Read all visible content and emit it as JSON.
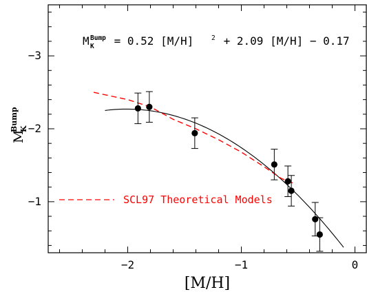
{
  "chart_data": {
    "type": "scatter",
    "xlabel": "[M/H]",
    "ylabel_main": "M",
    "ylabel_sub": "K",
    "ylabel_sup": "Bump",
    "xlim": [
      -2.7,
      0.1
    ],
    "ylim": [
      -0.3,
      -3.7
    ],
    "y_inverted": true,
    "x_ticks": [
      -2,
      -1,
      0
    ],
    "x_tick_labels": [
      "−2",
      "−1",
      "0"
    ],
    "y_ticks": [
      -3,
      -2,
      -1
    ],
    "y_tick_labels": [
      "−3",
      "−2",
      "−1"
    ],
    "equation": {
      "lhs_main": "M",
      "lhs_sub": "K",
      "lhs_sup": "Bump",
      "rhs_part1": " = 0.52 [M/H]",
      "rhs_sq": "2",
      "rhs_part2": " + 2.09 [M/H] − 0.17"
    },
    "series": [
      {
        "kind": "points_with_errorbars",
        "color": "#000000",
        "points": [
          {
            "x": -1.91,
            "y": -2.28,
            "err": 0.21
          },
          {
            "x": -1.81,
            "y": -2.3,
            "err": 0.21
          },
          {
            "x": -1.41,
            "y": -1.94,
            "err": 0.21
          },
          {
            "x": -0.71,
            "y": -1.51,
            "err": 0.21
          },
          {
            "x": -0.59,
            "y": -1.28,
            "err": 0.21
          },
          {
            "x": -0.56,
            "y": -1.15,
            "err": 0.21
          },
          {
            "x": -0.35,
            "y": -0.76,
            "err": 0.23
          },
          {
            "x": -0.31,
            "y": -0.55,
            "err": 0.23
          }
        ]
      },
      {
        "kind": "fit_curve",
        "color": "#000000",
        "coefficients": {
          "a": 0.52,
          "b": 2.09,
          "c": -0.17
        },
        "x_range": [
          -2.2,
          -0.1
        ]
      },
      {
        "kind": "dashed_line",
        "name": "SCL97 Theoretical Models",
        "color": "#ff0000",
        "points": [
          {
            "x": -2.3,
            "y": -2.5
          },
          {
            "x": -2.0,
            "y": -2.4
          },
          {
            "x": -1.8,
            "y": -2.3
          },
          {
            "x": -1.6,
            "y": -2.13
          },
          {
            "x": -1.4,
            "y": -2.0
          },
          {
            "x": -1.2,
            "y": -1.85
          },
          {
            "x": -1.0,
            "y": -1.68
          },
          {
            "x": -0.8,
            "y": -1.48
          },
          {
            "x": -0.65,
            "y": -1.32
          },
          {
            "x": -0.52,
            "y": -1.24
          }
        ]
      }
    ],
    "legend": {
      "label": "SCL97 Theoretical Models",
      "color": "#ff0000",
      "placement": "lower-left"
    }
  }
}
